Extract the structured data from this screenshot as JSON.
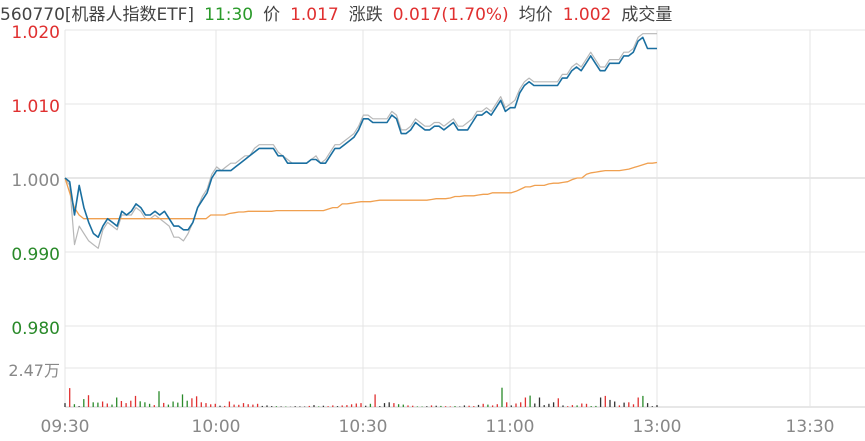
{
  "header": {
    "code_name": "560770[机器人指数ETF]",
    "time": "11:30",
    "price_label": "价",
    "price": "1.017",
    "change_label": "涨跌",
    "change": "0.017(1.70%)",
    "avg_label": "均价",
    "avg": "1.002",
    "volume_label": "成交量"
  },
  "colors": {
    "price_line": "#1a6fa0",
    "price_shadow": "#b8b8b8",
    "avg_line": "#f0a050",
    "up": "#e03030",
    "down": "#2a8a2a",
    "neutral": "#333333",
    "grid": "#e4e4e4",
    "axis_text": "#888888"
  },
  "chart_data": {
    "type": "line",
    "title": "",
    "xlabel": "",
    "ylabel": "",
    "ylim": [
      0.98,
      1.02
    ],
    "y_ticks": [
      "1.020",
      "1.010",
      "1.000",
      "0.990",
      "0.980"
    ],
    "x_ticks": [
      "09:30",
      "10:00",
      "10:30",
      "11:00",
      "11:30",
      "13:00",
      "13:30"
    ],
    "volume_tick": "2.47万",
    "series": [
      {
        "key": "price",
        "values": [
          1.0,
          0.9995,
          0.995,
          0.999,
          0.996,
          0.994,
          0.9925,
          0.992,
          0.9935,
          0.9945,
          0.994,
          0.9935,
          0.9955,
          0.995,
          0.9955,
          0.9965,
          0.996,
          0.995,
          0.995,
          0.9955,
          0.995,
          0.9955,
          0.9945,
          0.9935,
          0.9935,
          0.993,
          0.993,
          0.994,
          0.996,
          0.997,
          0.998,
          1.0,
          1.001,
          1.001,
          1.001,
          1.001,
          1.0015,
          1.002,
          1.0025,
          1.003,
          1.0035,
          1.004,
          1.004,
          1.004,
          1.004,
          1.003,
          1.003,
          1.002,
          1.002,
          1.002,
          1.002,
          1.002,
          1.0025,
          1.0025,
          1.002,
          1.002,
          1.003,
          1.004,
          1.004,
          1.0045,
          1.005,
          1.0055,
          1.0065,
          1.008,
          1.008,
          1.0075,
          1.0075,
          1.0075,
          1.0075,
          1.0085,
          1.008,
          1.006,
          1.006,
          1.0065,
          1.0075,
          1.007,
          1.0065,
          1.0065,
          1.007,
          1.007,
          1.0065,
          1.007,
          1.0075,
          1.0065,
          1.0065,
          1.0065,
          1.0075,
          1.0085,
          1.0085,
          1.009,
          1.0085,
          1.0095,
          1.0105,
          1.009,
          1.0095,
          1.0095,
          1.0115,
          1.0125,
          1.013,
          1.0125,
          1.0125,
          1.0125,
          1.0125,
          1.0125,
          1.0125,
          1.0135,
          1.0135,
          1.0145,
          1.015,
          1.0145,
          1.0155,
          1.0165,
          1.0155,
          1.0145,
          1.0145,
          1.0155,
          1.0155,
          1.0155,
          1.0165,
          1.0165,
          1.017,
          1.0185,
          1.019,
          1.0175,
          1.0175,
          1.0175
        ]
      },
      {
        "key": "price_shadow",
        "values": [
          1.0,
          0.999,
          0.991,
          0.9935,
          0.9925,
          0.9915,
          0.991,
          0.9905,
          0.993,
          0.994,
          0.9935,
          0.993,
          0.995,
          0.995,
          0.995,
          0.996,
          0.9955,
          0.9945,
          0.9945,
          0.995,
          0.9945,
          0.994,
          0.9935,
          0.992,
          0.992,
          0.9915,
          0.9925,
          0.994,
          0.996,
          0.9975,
          0.9985,
          1.0005,
          1.0015,
          1.001,
          1.0015,
          1.002,
          1.002,
          1.0025,
          1.003,
          1.003,
          1.004,
          1.0045,
          1.0045,
          1.0045,
          1.0045,
          1.0035,
          1.003,
          1.0025,
          1.002,
          1.002,
          1.002,
          1.002,
          1.0025,
          1.003,
          1.002,
          1.0025,
          1.0035,
          1.0045,
          1.0045,
          1.005,
          1.0055,
          1.006,
          1.007,
          1.0085,
          1.0085,
          1.008,
          1.008,
          1.008,
          1.008,
          1.009,
          1.0085,
          1.0065,
          1.0065,
          1.007,
          1.008,
          1.0075,
          1.007,
          1.007,
          1.0075,
          1.0075,
          1.007,
          1.0075,
          1.008,
          1.007,
          1.007,
          1.0075,
          1.008,
          1.009,
          1.009,
          1.0095,
          1.009,
          1.01,
          1.011,
          1.0095,
          1.01,
          1.0105,
          1.012,
          1.013,
          1.0135,
          1.013,
          1.013,
          1.013,
          1.013,
          1.013,
          1.013,
          1.014,
          1.014,
          1.015,
          1.0155,
          1.015,
          1.016,
          1.017,
          1.016,
          1.015,
          1.015,
          1.016,
          1.016,
          1.016,
          1.017,
          1.017,
          1.0175,
          1.019,
          1.0195,
          1.0195,
          1.0195,
          1.0195
        ]
      },
      {
        "key": "avg",
        "values": [
          1.0,
          0.998,
          0.996,
          0.995,
          0.9945,
          0.9945,
          0.9945,
          0.9945,
          0.9945,
          0.9945,
          0.9945,
          0.9945,
          0.9945,
          0.9945,
          0.9945,
          0.9945,
          0.9945,
          0.9945,
          0.9945,
          0.9945,
          0.9945,
          0.9945,
          0.9945,
          0.9945,
          0.9945,
          0.9945,
          0.9945,
          0.9945,
          0.9945,
          0.9945,
          0.9945,
          0.995,
          0.995,
          0.995,
          0.995,
          0.9952,
          0.9953,
          0.9954,
          0.9954,
          0.9955,
          0.9955,
          0.9955,
          0.9955,
          0.9955,
          0.9955,
          0.9956,
          0.9956,
          0.9956,
          0.9956,
          0.9956,
          0.9956,
          0.9956,
          0.9956,
          0.9956,
          0.9956,
          0.9956,
          0.9958,
          0.996,
          0.996,
          0.9965,
          0.9965,
          0.9966,
          0.9967,
          0.9968,
          0.9968,
          0.9968,
          0.9969,
          0.997,
          0.997,
          0.997,
          0.997,
          0.997,
          0.997,
          0.997,
          0.997,
          0.997,
          0.997,
          0.997,
          0.9971,
          0.9972,
          0.9972,
          0.9972,
          0.9973,
          0.9975,
          0.9975,
          0.9976,
          0.9976,
          0.9976,
          0.9977,
          0.9978,
          0.9978,
          0.998,
          0.998,
          0.998,
          0.998,
          0.998,
          0.9982,
          0.9985,
          0.9988,
          0.9988,
          0.999,
          0.999,
          0.999,
          0.9992,
          0.9993,
          0.9993,
          0.9994,
          0.9995,
          0.9998,
          1.0,
          1.0,
          1.0005,
          1.0007,
          1.0008,
          1.0009,
          1.001,
          1.001,
          1.001,
          1.001,
          1.0011,
          1.0012,
          1.0014,
          1.0016,
          1.0018,
          1.002,
          1.002,
          1.0021
        ]
      }
    ],
    "volume": {
      "max": 24700,
      "values": [
        2500,
        12000,
        1800,
        600,
        5000,
        7500,
        3000,
        2800,
        3500,
        2200,
        1500,
        6000,
        3800,
        2500,
        4000,
        7000,
        3600,
        3000,
        2000,
        1200,
        10000,
        2600,
        1500,
        3500,
        2800,
        8000,
        4000,
        5500,
        6800,
        3000,
        2500,
        1700,
        2000,
        800,
        700,
        3500,
        1500,
        1400,
        2500,
        1800,
        1500,
        2000,
        700,
        1000,
        600,
        500,
        400,
        300,
        200,
        500,
        400,
        300,
        700,
        1200,
        400,
        800,
        500,
        1000,
        600,
        1000,
        1200,
        1700,
        2200,
        2500,
        800,
        2000,
        8000,
        600,
        2500,
        3000,
        2500,
        1800,
        1500,
        1000,
        800,
        400,
        300,
        500,
        1000,
        800,
        700,
        500,
        400,
        600,
        300,
        1000,
        800,
        600,
        1300,
        2000,
        1500,
        1000,
        1800,
        12200,
        3000,
        1000,
        2200,
        3000,
        6000,
        7200,
        2200,
        6000,
        1200,
        2000,
        3000,
        5500,
        1000,
        500,
        1200,
        1000,
        2200,
        2000,
        600,
        700,
        6000,
        7000,
        4500,
        3500,
        1000,
        2800,
        3000,
        1700,
        6000,
        7000,
        2500,
        500,
        1200
      ]
    },
    "volume_dir": [
      0,
      1,
      -1,
      0,
      -1,
      1,
      -1,
      -1,
      1,
      1,
      -1,
      -1,
      1,
      1,
      1,
      1,
      -1,
      -1,
      -1,
      1,
      -1,
      1,
      -1,
      -1,
      -1,
      -1,
      -1,
      1,
      1,
      1,
      1,
      1,
      1,
      0,
      1,
      1,
      1,
      1,
      1,
      1,
      1,
      1,
      0,
      0,
      0,
      -1,
      0,
      -1,
      0,
      0,
      0,
      0,
      1,
      0,
      -1,
      0,
      1,
      1,
      0,
      1,
      1,
      1,
      1,
      1,
      0,
      -1,
      1,
      0,
      0,
      0,
      1,
      -1,
      -1,
      1,
      1,
      -1,
      -1,
      0,
      1,
      0,
      -1,
      1,
      1,
      -1,
      0,
      0,
      1,
      1,
      0,
      1,
      -1,
      1,
      1,
      -1,
      1,
      0,
      1,
      1,
      1,
      -1,
      0,
      0,
      0,
      0,
      0,
      1,
      0,
      1,
      1,
      -1,
      1,
      1,
      -1,
      -1,
      0,
      1,
      0,
      0,
      1,
      0,
      1,
      1,
      1,
      -1,
      0,
      0
    ]
  }
}
